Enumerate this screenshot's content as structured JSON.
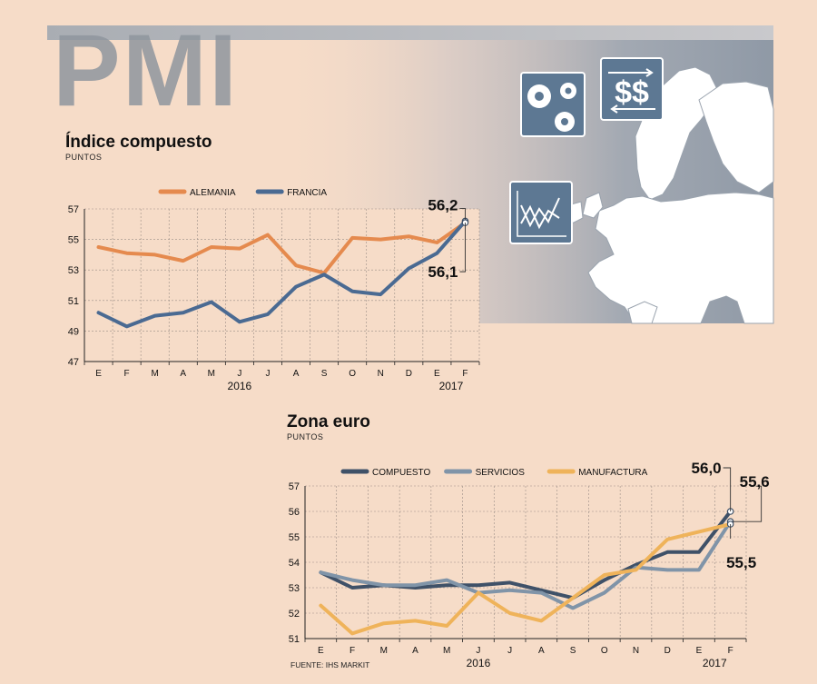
{
  "header": {
    "title": "PMI"
  },
  "colors": {
    "background": "#f6dcc8",
    "alemania": "#e58a4e",
    "francia": "#4a6a92",
    "compuesto": "#3f5168",
    "servicios": "#8094a8",
    "manufactura": "#efb35a",
    "icon_fill": "#5d7893",
    "map_fill": "#ffffff"
  },
  "icons": [
    "gears-icon",
    "dollar-exchange-icon",
    "chart-analysis-icon",
    "europe-map"
  ],
  "footer": {
    "source": "FUENTE: IHS MARKIT"
  },
  "chart_data": [
    {
      "type": "line",
      "title": "Índice compuesto",
      "subtitle": "PUNTOS",
      "categories": [
        "E",
        "F",
        "M",
        "A",
        "M",
        "J",
        "J",
        "A",
        "S",
        "O",
        "N",
        "D",
        "E",
        "F"
      ],
      "year_labels": [
        "2016",
        "2017"
      ],
      "ylim": [
        47,
        57
      ],
      "yticks": [
        47,
        49,
        51,
        53,
        55,
        57
      ],
      "grid": true,
      "legend_position": "top",
      "series": [
        {
          "name": "ALEMANIA",
          "color": "#e58a4e",
          "values": [
            54.5,
            54.1,
            54.0,
            53.6,
            54.5,
            54.4,
            55.3,
            53.3,
            52.8,
            55.1,
            55.0,
            55.2,
            54.8,
            56.1
          ]
        },
        {
          "name": "FRANCIA",
          "color": "#4a6a92",
          "values": [
            50.2,
            49.3,
            50.0,
            50.2,
            50.9,
            49.6,
            50.1,
            51.9,
            52.7,
            51.6,
            51.4,
            53.1,
            54.1,
            56.2
          ]
        }
      ],
      "annotations": [
        {
          "label": "56,2",
          "series": "FRANCIA",
          "position": "above"
        },
        {
          "label": "56,1",
          "series": "ALEMANIA",
          "position": "below"
        }
      ]
    },
    {
      "type": "line",
      "title": "Zona euro",
      "subtitle": "PUNTOS",
      "categories": [
        "E",
        "F",
        "M",
        "A",
        "M",
        "J",
        "J",
        "A",
        "S",
        "O",
        "N",
        "D",
        "E",
        "F"
      ],
      "year_labels": [
        "2016",
        "2017"
      ],
      "ylim": [
        51,
        57
      ],
      "yticks": [
        51,
        52,
        53,
        54,
        55,
        56,
        57
      ],
      "grid": true,
      "legend_position": "top",
      "series": [
        {
          "name": "COMPUESTO",
          "color": "#3f5168",
          "values": [
            53.6,
            53.0,
            53.1,
            53.0,
            53.1,
            53.1,
            53.2,
            52.9,
            52.6,
            53.3,
            53.9,
            54.4,
            54.4,
            56.0
          ]
        },
        {
          "name": "SERVICIOS",
          "color": "#8094a8",
          "values": [
            53.6,
            53.3,
            53.1,
            53.1,
            53.3,
            52.8,
            52.9,
            52.8,
            52.2,
            52.8,
            53.8,
            53.7,
            53.7,
            55.6
          ]
        },
        {
          "name": "MANUFACTURA",
          "color": "#efb35a",
          "values": [
            52.3,
            51.2,
            51.6,
            51.7,
            51.5,
            52.8,
            52.0,
            51.7,
            52.6,
            53.5,
            53.7,
            54.9,
            55.2,
            55.5
          ]
        }
      ],
      "annotations": [
        {
          "label": "56,0",
          "series": "COMPUESTO",
          "position": "above-left"
        },
        {
          "label": "55,6",
          "series": "SERVICIOS",
          "position": "above-right"
        },
        {
          "label": "55,5",
          "series": "MANUFACTURA",
          "position": "below"
        }
      ]
    }
  ]
}
